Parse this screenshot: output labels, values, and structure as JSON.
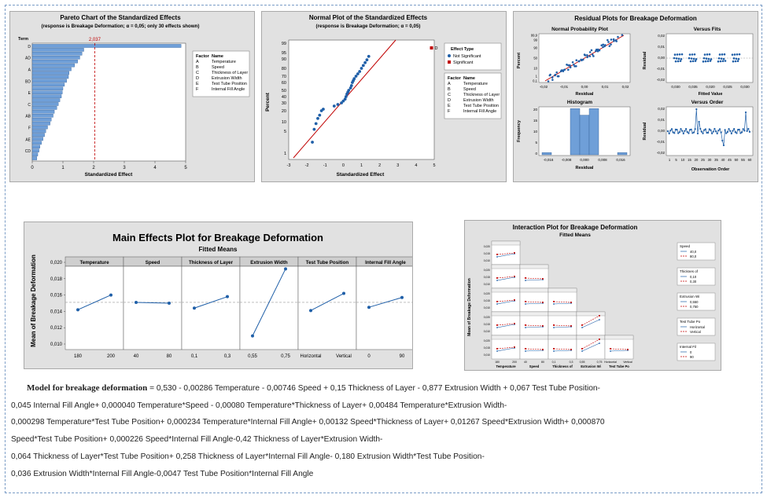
{
  "pareto": {
    "title": "Pareto Chart of the Standardized Effects",
    "subtitle": "(response is Breakage Deformation; α = 0,05; only 30 effects shown)",
    "term_label": "Term",
    "threshold_label": "2,037",
    "xlabel": "Standardized Effect",
    "xticks": [
      "0",
      "1",
      "2",
      "3",
      "4",
      "5"
    ],
    "legend_header": [
      "Factor",
      "Name"
    ],
    "legend_rows": [
      [
        "A",
        "Temperature"
      ],
      [
        "B",
        "Speed"
      ],
      [
        "C",
        "Thickness of Layer"
      ],
      [
        "D",
        "Extrusion Width"
      ],
      [
        "E",
        "Test Tube Position"
      ],
      [
        "F",
        "Internal Fill Angle"
      ]
    ]
  },
  "normal": {
    "title": "Normal Plot of the Standardized Effects",
    "subtitle": "(response is Breakage Deformation; α = 0,05)",
    "ylabel": "Percent",
    "xlabel": "Standardized Effect",
    "yticks": [
      "99",
      "95",
      "90",
      "80",
      "70",
      "60",
      "50",
      "40",
      "30",
      "20",
      "10",
      "5",
      "1"
    ],
    "xticks": [
      "-3",
      "-2",
      "-1",
      "0",
      "1",
      "2",
      "3",
      "4",
      "5"
    ],
    "point_label": "D",
    "legend_title": "Effect Type",
    "legend_items": [
      "Not Significant",
      "Significant"
    ],
    "legend_header": [
      "Factor",
      "Name"
    ],
    "legend_rows": [
      [
        "A",
        "Temperature"
      ],
      [
        "B",
        "Speed"
      ],
      [
        "C",
        "Thickness of Layer"
      ],
      [
        "D",
        "Extrusion Width"
      ],
      [
        "E",
        "Test Tube Position"
      ],
      [
        "F",
        "Internal Fill Angle"
      ]
    ]
  },
  "residual": {
    "title": "Residual Plots for Breakage Deformation",
    "np_title": "Normal Probability Plot",
    "np_ylabel": "Percent",
    "np_xlabel": "Residual",
    "np_yticks": [
      "99,9",
      "99",
      "90",
      "50",
      "10",
      "1",
      "0,1"
    ],
    "np_xticks": [
      "-0,02",
      "-0,01",
      "0,00",
      "0,01",
      "0,02"
    ],
    "fits_title": "Versus Fits",
    "fits_ylabel": "Residual",
    "fits_xlabel": "Fitted Value",
    "fits_yticks": [
      "0,02",
      "0,01",
      "0,00",
      "-0,01",
      "-0,02"
    ],
    "fits_xticks": [
      "0,030",
      "0,035",
      "0,020",
      "0,025",
      "0,030"
    ],
    "hist_title": "Histogram",
    "hist_ylabel": "Frequency",
    "hist_xlabel": "Residual",
    "hist_yticks": [
      "20",
      "15",
      "10",
      "5",
      "0"
    ],
    "hist_xticks": [
      "-0,016",
      "-0,008",
      "0,000",
      "0,008",
      "0,016"
    ],
    "order_title": "Versus Order",
    "order_ylabel": "Residual",
    "order_xlabel": "Observation Order",
    "order_yticks": [
      "0,02",
      "0,01",
      "0,00",
      "-0,01",
      "-0,02"
    ],
    "order_xticks": [
      "1",
      "5",
      "10",
      "15",
      "20",
      "25",
      "30",
      "35",
      "40",
      "45",
      "50",
      "55",
      "60"
    ]
  },
  "main_effects": {
    "title": "Main Effects Plot for Breakage Deformation",
    "subtitle": "Fitted Means",
    "ylabel": "Mean of Breakage Deformation",
    "yticks": [
      "0,020",
      "0,018",
      "0,016",
      "0,014",
      "0,012",
      "0,010"
    ],
    "factors": [
      {
        "name": "Temperature",
        "levels": [
          "180",
          "200"
        ]
      },
      {
        "name": "Speed",
        "levels": [
          "40",
          "80"
        ]
      },
      {
        "name": "Thickness of Layer",
        "levels": [
          "0,1",
          "0,3"
        ]
      },
      {
        "name": "Extrusion Width",
        "levels": [
          "0,55",
          "0,75"
        ]
      },
      {
        "name": "Test Tube Position",
        "levels": [
          "Horizontal",
          "Vertical"
        ]
      },
      {
        "name": "Internal Fill Angle",
        "levels": [
          "0",
          "90"
        ]
      }
    ]
  },
  "interaction": {
    "title": "Interaction Plot for Breakage Deformation",
    "subtitle": "Fitted Means",
    "ylabel": "Mean of Breakage Deformation",
    "yticks": [
      "0,020",
      "0,015",
      "0,010"
    ],
    "col_labels": [
      "Temperature",
      "Speed",
      "Thickness of",
      "Extrusion Wi",
      "Test Tube Po"
    ],
    "col_ticks": [
      [
        "180",
        "200"
      ],
      [
        "40",
        "80"
      ],
      [
        "0,1",
        "0,3"
      ],
      [
        "0,55",
        "0,75"
      ],
      [
        "Horizontal",
        "Vertical"
      ]
    ],
    "legends": [
      {
        "title": "Speed",
        "items": [
          "40,0",
          "80,0"
        ]
      },
      {
        "title": "Thicknes of",
        "items": [
          "0,10",
          "0,30"
        ]
      },
      {
        "title": "Extrusion Wi",
        "items": [
          "0,550",
          "0,750"
        ]
      },
      {
        "title": "Test Tube Po",
        "items": [
          "Horizontal",
          "Vertical"
        ]
      },
      {
        "title": "Internal Fil",
        "items": [
          "0",
          "90"
        ]
      }
    ]
  },
  "equation": {
    "label": "Model for breakage deformation",
    "lines": [
      " = 0,530 - 0,00286 Temperature - 0,00746 Speed + 0,15 Thickness of Layer - 0,877 Extrusion Width + 0,067 Test Tube Position-",
      "0,045 Internal Fill Angle+ 0,000040 Temperature*Speed - 0,00080 Temperature*Thickness of Layer+ 0,00484 Temperature*Extrusion Width-",
      "0,000298 Temperature*Test Tube Position+ 0,000234 Temperature*Internal Fill Angle+ 0,00132 Speed*Thickness of Layer+ 0,01267 Speed*Extrusion Width+ 0,000870",
      "Speed*Test Tube Position+ 0,000226 Speed*Internal Fill Angle-0,42 Thickness of Layer*Extrusion Width-",
      "0,064 Thickness of Layer*Test Tube Position+ 0,258 Thickness of Layer*Internal Fill Angle- 0,180 Extrusion Width*Test Tube Position-",
      "0,036 Extrusion Width*Internal Fill Angle-0,0047 Test Tube Position*Internal Fill Angle"
    ]
  },
  "chart_data": [
    {
      "type": "bar",
      "title": "Pareto Chart of the Standardized Effects",
      "xlabel": "Standardized Effect",
      "xlim": [
        0,
        5
      ],
      "threshold": 2.037,
      "terms_visible": [
        "D",
        "AD",
        "A",
        "BD",
        "E",
        "C",
        "AB",
        "F",
        "AE",
        "CD"
      ],
      "values": [
        4.85,
        1.68,
        1.62,
        1.55,
        1.48,
        1.38,
        1.27,
        1.2,
        1.18,
        1.12,
        1.05,
        1.0,
        0.98,
        0.95,
        0.9,
        0.85,
        0.8,
        0.72,
        0.68,
        0.62,
        0.58,
        0.5,
        0.44,
        0.4,
        0.35,
        0.3,
        0.25,
        0.22,
        0.18,
        0.15
      ]
    },
    {
      "type": "scatter",
      "title": "Normal Plot of the Standardized Effects",
      "xlabel": "Standardized Effect",
      "ylabel": "Percent",
      "xlim": [
        -3,
        5
      ],
      "points": [
        [
          -1.7,
          3
        ],
        [
          -1.6,
          6
        ],
        [
          -1.5,
          9
        ],
        [
          -1.4,
          13
        ],
        [
          -1.3,
          16
        ],
        [
          -1.2,
          20
        ],
        [
          -1.1,
          22
        ],
        [
          -0.5,
          26
        ],
        [
          -0.3,
          28
        ],
        [
          -0.1,
          30
        ],
        [
          0.0,
          33
        ],
        [
          0.1,
          36
        ],
        [
          0.15,
          40
        ],
        [
          0.2,
          44
        ],
        [
          0.25,
          47
        ],
        [
          0.3,
          50
        ],
        [
          0.4,
          53
        ],
        [
          0.45,
          56
        ],
        [
          0.5,
          60
        ],
        [
          0.55,
          63
        ],
        [
          0.6,
          66
        ],
        [
          0.7,
          70
        ],
        [
          0.8,
          73
        ],
        [
          0.9,
          76
        ],
        [
          1.0,
          80
        ],
        [
          1.1,
          83
        ],
        [
          1.2,
          86
        ],
        [
          1.3,
          89
        ],
        [
          1.4,
          92
        ],
        [
          4.85,
          97
        ]
      ]
    },
    {
      "type": "scatter",
      "title": "Main Effects Plot for Breakage Deformation",
      "ylabel": "Mean of Breakage Deformation",
      "ylim": [
        0.01,
        0.02
      ],
      "series": [
        {
          "name": "Temperature",
          "values": [
            0.0142,
            0.016
          ]
        },
        {
          "name": "Speed",
          "values": [
            0.0151,
            0.015
          ]
        },
        {
          "name": "Thickness of Layer",
          "values": [
            0.0144,
            0.0158
          ]
        },
        {
          "name": "Extrusion Width",
          "values": [
            0.011,
            0.0192
          ]
        },
        {
          "name": "Test Tube Position",
          "values": [
            0.0141,
            0.0162
          ]
        },
        {
          "name": "Internal Fill Angle",
          "values": [
            0.0145,
            0.0157
          ]
        }
      ]
    }
  ]
}
